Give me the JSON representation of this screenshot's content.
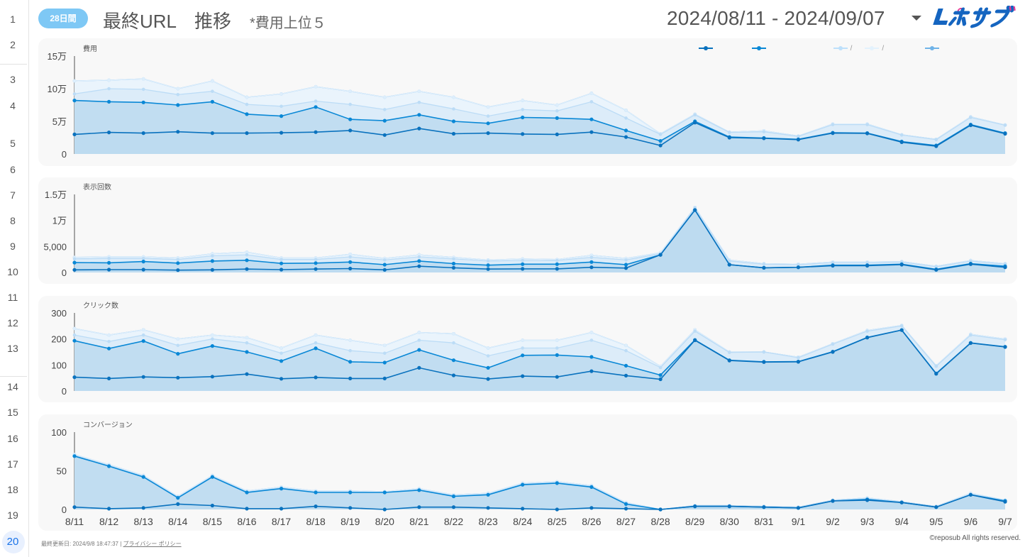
{
  "header": {
    "badge": "28日間",
    "title": "最終URL　推移",
    "subtitle": "*費用上位５",
    "date_range": "2024/08/11 - 2024/09/07"
  },
  "gutter_rows": [
    "1",
    "2",
    "3",
    "4",
    "5",
    "6",
    "7",
    "8",
    "9",
    "10",
    "11",
    "12",
    "13",
    "14",
    "15",
    "16",
    "17",
    "18",
    "19",
    "20"
  ],
  "legend": [
    {
      "label": "/",
      "color": "#bde0fb"
    },
    {
      "label": "/",
      "color": "#e3f2fd"
    }
  ],
  "colors": {
    "series": [
      "#0a72be",
      "#0a88d6",
      "#bcdcf6",
      "#ddeefc",
      "#6fb3e8"
    ],
    "fill_main": "#bcdaf0",
    "fill_light": "#e6f1fb"
  },
  "footer": {
    "updated_label": "最終更新日:",
    "updated_value": "2024/9/8 18:47:37",
    "separator": "|",
    "privacy": "プライバシー ポリシー",
    "copyright": "©reposub All rights reserved."
  },
  "chart_data": [
    {
      "type": "area",
      "title": "費用",
      "x": [
        "8/11",
        "8/12",
        "8/13",
        "8/14",
        "8/15",
        "8/16",
        "8/17",
        "8/18",
        "8/19",
        "8/20",
        "8/21",
        "8/22",
        "8/23",
        "8/24",
        "8/25",
        "8/26",
        "8/27",
        "8/28",
        "8/29",
        "8/30",
        "8/31",
        "9/1",
        "9/2",
        "9/3",
        "9/4",
        "9/5",
        "9/6",
        "9/7"
      ],
      "ylim": [
        0,
        150000
      ],
      "yticks": [
        0,
        50000,
        100000,
        150000
      ],
      "ytick_labels": [
        "0",
        "5万",
        "10万",
        "15万"
      ],
      "series": [
        {
          "values": [
            30000,
            33000,
            32000,
            34000,
            32000,
            32000,
            32500,
            33500,
            36000,
            29000,
            39000,
            31000,
            32000,
            30500,
            30000,
            33500,
            26000,
            13000,
            48000,
            25000,
            24000,
            22000,
            32000,
            31500,
            18000,
            12000,
            44000,
            31000
          ]
        },
        {
          "values": [
            82000,
            80000,
            79000,
            75000,
            80000,
            61000,
            58000,
            72000,
            53000,
            51000,
            60000,
            50000,
            47000,
            56000,
            55000,
            53000,
            36000,
            20000,
            50000,
            26000,
            24500,
            22500,
            32500,
            32000,
            19000,
            13000,
            45000,
            32000
          ]
        },
        {
          "values": [
            92000,
            100000,
            99000,
            91000,
            96000,
            76000,
            73000,
            81000,
            76000,
            68000,
            79000,
            69000,
            58000,
            68000,
            66000,
            80000,
            55000,
            30000,
            60000,
            33000,
            34000,
            27000,
            45000,
            45000,
            29000,
            22000,
            56000,
            44000
          ]
        },
        {
          "values": [
            112000,
            113000,
            115000,
            100000,
            112000,
            87000,
            92000,
            103000,
            96000,
            87000,
            96000,
            87000,
            72000,
            82000,
            75000,
            93000,
            67000,
            31000,
            61000,
            33500,
            35500,
            27500,
            46000,
            46000,
            29500,
            22500,
            57000,
            44500
          ]
        },
        {
          "values": [
            112000,
            113000,
            115000,
            100000,
            112000,
            87000,
            92000,
            103000,
            96000,
            87000,
            96000,
            87000,
            72000,
            82000,
            75000,
            93000,
            67000,
            31000,
            61000,
            33500,
            35500,
            27500,
            46000,
            46000,
            29500,
            22500,
            57000,
            44500
          ]
        }
      ]
    },
    {
      "type": "area",
      "title": "表示回数",
      "x": [
        "8/11",
        "8/12",
        "8/13",
        "8/14",
        "8/15",
        "8/16",
        "8/17",
        "8/18",
        "8/19",
        "8/20",
        "8/21",
        "8/22",
        "8/23",
        "8/24",
        "8/25",
        "8/26",
        "8/27",
        "8/28",
        "8/29",
        "8/30",
        "8/31",
        "9/1",
        "9/2",
        "9/3",
        "9/4",
        "9/5",
        "9/6",
        "9/7"
      ],
      "ylim": [
        0,
        15000
      ],
      "yticks": [
        0,
        5000,
        10000,
        15000
      ],
      "ytick_labels": [
        "0",
        "5,000",
        "1万",
        "1.5万"
      ],
      "series": [
        {
          "values": [
            500,
            550,
            550,
            450,
            500,
            650,
            550,
            650,
            750,
            500,
            1200,
            900,
            650,
            700,
            700,
            1000,
            850,
            3400,
            12000,
            1500,
            900,
            1000,
            1300,
            1300,
            1500,
            500,
            1600,
            1000
          ]
        },
        {
          "values": [
            1900,
            1850,
            2100,
            1800,
            2200,
            2350,
            1750,
            1800,
            2000,
            1500,
            2200,
            1700,
            1400,
            1600,
            1600,
            2000,
            1500,
            3400,
            12000,
            1500,
            900,
            1000,
            1400,
            1400,
            1600,
            600,
            1700,
            1200
          ]
        },
        {
          "values": [
            2600,
            2700,
            2700,
            2500,
            3200,
            3400,
            2500,
            2500,
            3000,
            2400,
            3000,
            2600,
            2200,
            2300,
            2300,
            2900,
            2400,
            3600,
            12400,
            2200,
            1600,
            1500,
            1900,
            1900,
            2000,
            1100,
            2200,
            1600
          ]
        },
        {
          "values": [
            2900,
            3000,
            3000,
            2800,
            3600,
            3900,
            2800,
            2800,
            3500,
            2700,
            3400,
            2900,
            2400,
            2600,
            2500,
            3300,
            2700,
            3800,
            12500,
            2400,
            1700,
            1600,
            2000,
            2000,
            2100,
            1200,
            2300,
            1700
          ]
        },
        {
          "values": [
            2900,
            3000,
            3000,
            2800,
            3600,
            3900,
            2800,
            2800,
            3500,
            2700,
            3400,
            2900,
            2400,
            2600,
            2500,
            3300,
            2700,
            3800,
            12500,
            2400,
            1700,
            1600,
            2000,
            2000,
            2100,
            1200,
            2300,
            1700
          ]
        }
      ]
    },
    {
      "type": "area",
      "title": "クリック数",
      "x": [
        "8/11",
        "8/12",
        "8/13",
        "8/14",
        "8/15",
        "8/16",
        "8/17",
        "8/18",
        "8/19",
        "8/20",
        "8/21",
        "8/22",
        "8/23",
        "8/24",
        "8/25",
        "8/26",
        "8/27",
        "8/28",
        "8/29",
        "8/30",
        "8/31",
        "9/1",
        "9/2",
        "9/3",
        "9/4",
        "9/5",
        "9/6",
        "9/7"
      ],
      "ylim": [
        0,
        300
      ],
      "yticks": [
        0,
        100,
        200,
        300
      ],
      "ytick_labels": [
        "0",
        "100",
        "200",
        "300"
      ],
      "series": [
        {
          "values": [
            53,
            48,
            54,
            51,
            55,
            65,
            47,
            52,
            48,
            48,
            89,
            60,
            46,
            57,
            54,
            76,
            59,
            45,
            195,
            117,
            111,
            112,
            150,
            205,
            234,
            66,
            184,
            169
          ]
        },
        {
          "values": [
            193,
            163,
            192,
            143,
            173,
            150,
            115,
            164,
            112,
            109,
            158,
            118,
            89,
            137,
            138,
            131,
            97,
            61,
            196,
            118,
            112,
            113,
            151,
            206,
            234,
            67,
            185,
            170
          ]
        },
        {
          "values": [
            215,
            190,
            215,
            175,
            200,
            185,
            145,
            185,
            155,
            145,
            195,
            185,
            135,
            165,
            165,
            195,
            155,
            90,
            230,
            148,
            150,
            128,
            180,
            230,
            250,
            95,
            215,
            197
          ]
        },
        {
          "values": [
            240,
            215,
            235,
            200,
            215,
            205,
            165,
            215,
            195,
            175,
            225,
            220,
            165,
            195,
            195,
            225,
            175,
            95,
            235,
            150,
            150,
            130,
            182,
            233,
            252,
            97,
            218,
            200
          ]
        },
        {
          "values": [
            240,
            215,
            235,
            200,
            215,
            205,
            165,
            215,
            195,
            175,
            225,
            220,
            165,
            195,
            195,
            225,
            175,
            95,
            235,
            150,
            150,
            130,
            182,
            233,
            252,
            97,
            218,
            200
          ]
        }
      ]
    },
    {
      "type": "area",
      "title": "コンバージョン",
      "x": [
        "8/11",
        "8/12",
        "8/13",
        "8/14",
        "8/15",
        "8/16",
        "8/17",
        "8/18",
        "8/19",
        "8/20",
        "8/21",
        "8/22",
        "8/23",
        "8/24",
        "8/25",
        "8/26",
        "8/27",
        "8/28",
        "8/29",
        "8/30",
        "8/31",
        "9/1",
        "9/2",
        "9/3",
        "9/4",
        "9/5",
        "9/6",
        "9/7"
      ],
      "ylim": [
        0,
        100
      ],
      "yticks": [
        0,
        50,
        100
      ],
      "ytick_labels": [
        "0",
        "50",
        "100"
      ],
      "series": [
        {
          "values": [
            3,
            1,
            2,
            7,
            5,
            1,
            1,
            4,
            2,
            0,
            3,
            3,
            2,
            1,
            0,
            2,
            1,
            0,
            4,
            4,
            3,
            2,
            11,
            12,
            9,
            3,
            19,
            10
          ]
        },
        {
          "values": [
            69,
            56,
            42,
            15,
            42,
            22,
            27,
            22,
            22,
            22,
            25,
            17,
            19,
            32,
            34,
            29,
            7,
            0,
            4,
            4,
            3,
            2,
            11,
            13,
            9,
            3,
            19,
            11
          ]
        },
        {
          "values": [
            70,
            57,
            43,
            16,
            43,
            23,
            28,
            23,
            23,
            22,
            26,
            18,
            20,
            33,
            35,
            30,
            8,
            0,
            5,
            5,
            4,
            3,
            12,
            14,
            10,
            4,
            20,
            12
          ]
        },
        {
          "values": [
            71,
            58,
            44,
            17,
            44,
            24,
            29,
            24,
            24,
            23,
            27,
            19,
            21,
            34,
            36,
            31,
            9,
            0,
            5,
            5,
            4,
            3,
            12,
            15,
            10,
            4,
            21,
            12
          ]
        },
        {
          "values": [
            71,
            58,
            44,
            17,
            44,
            24,
            29,
            24,
            24,
            23,
            27,
            19,
            21,
            34,
            36,
            31,
            9,
            0,
            5,
            5,
            4,
            3,
            12,
            15,
            10,
            4,
            21,
            12
          ]
        }
      ]
    }
  ]
}
